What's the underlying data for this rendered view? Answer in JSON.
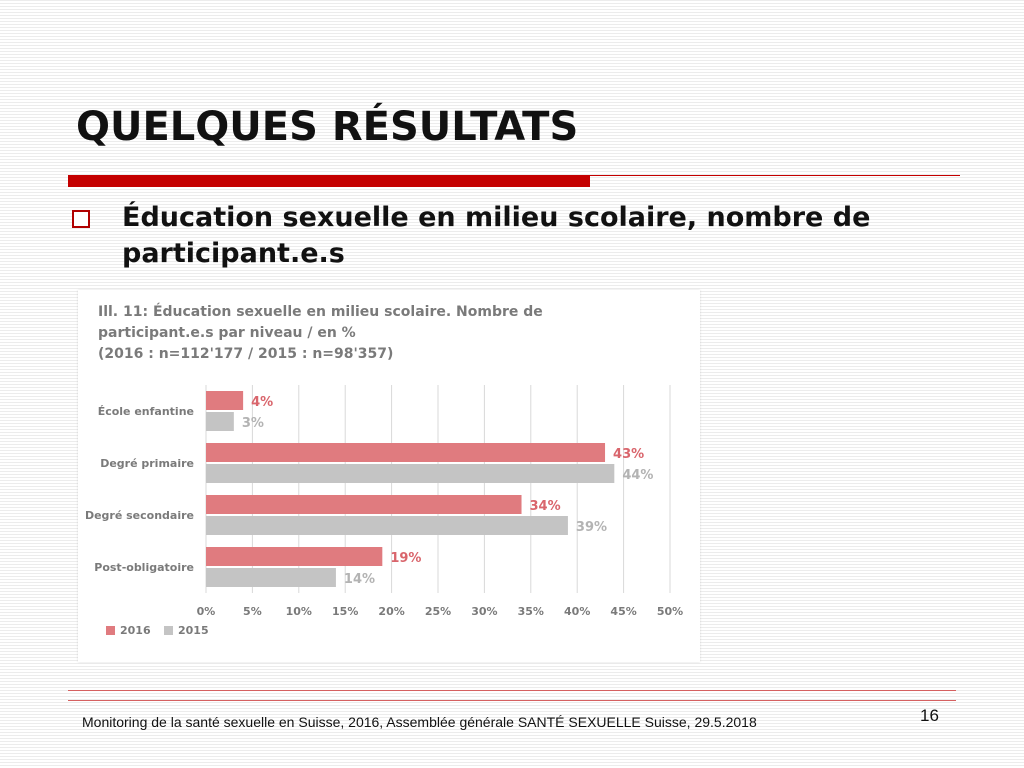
{
  "slide": {
    "title": "QUELQUES RÉSULTATS",
    "bullet": "Éducation sexuelle en milieu scolaire, nombre de participant.e.s",
    "footer": "Monitoring de la santé sexuelle en Suisse, 2016, Assemblée générale SANTÉ SEXUELLE Suisse, 29.5.2018",
    "page_number": "16"
  },
  "chart_data": {
    "type": "bar",
    "orientation": "horizontal",
    "title_lines": [
      "Ill. 11: Éducation sexuelle en milieu scolaire. Nombre de",
      "participant.e.s par niveau / en %",
      "(2016 : n=112'177 / 2015 : n=98'357)"
    ],
    "categories": [
      "École enfantine",
      "Degré primaire",
      "Degré secondaire",
      "Post-obligatoire"
    ],
    "series": [
      {
        "name": "2016",
        "values": [
          4,
          43,
          34,
          19
        ],
        "labels": [
          "4%",
          "43%",
          "34%",
          "19%"
        ],
        "color": "#e07b7f",
        "label_color": "#d9656c"
      },
      {
        "name": "2015",
        "values": [
          3,
          44,
          39,
          14
        ],
        "labels": [
          "3%",
          "44%",
          "39%",
          "14%"
        ],
        "color": "#c4c4c4",
        "label_color": "#b3b3b3"
      }
    ],
    "x_ticks": [
      "0%",
      "5%",
      "10%",
      "15%",
      "20%",
      "25%",
      "30%",
      "35%",
      "40%",
      "45%",
      "50%"
    ],
    "xlim": [
      0,
      50
    ],
    "grid": true,
    "legend_position": "bottom-left"
  }
}
